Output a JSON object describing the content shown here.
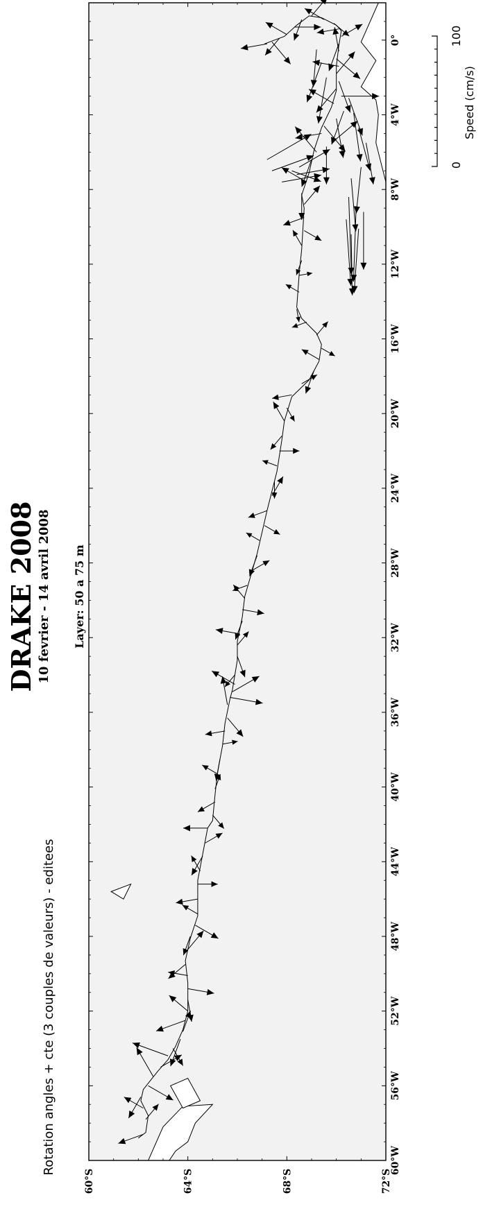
{
  "title": "DRAKE 2008",
  "subtitle": "10 fevrier - 14 avril 2008",
  "layer_label": "Layer:  50 a 75 m",
  "method_note": "Rotation angles + cte (3 couples de valeurs) - editees",
  "speed_scale": {
    "label": "Speed (cm/s)",
    "min_label": "0",
    "max_label": "100",
    "max_value": 100
  },
  "map": {
    "background_color": "#f2f2f2",
    "land_color": "#ffffff",
    "arrow_color": "#000000",
    "lat_range": [
      -72,
      -60
    ],
    "lon_range": [
      -60,
      2
    ],
    "lat_ticks": [
      "60°S",
      "64°S",
      "68°S",
      "72°S"
    ],
    "lon_ticks": [
      "60°W",
      "56°W",
      "52°W",
      "48°W",
      "44°W",
      "40°W",
      "36°W",
      "32°W",
      "28°W",
      "24°W",
      "20°W",
      "16°W",
      "12°W",
      "8°W",
      "4°W",
      "0°"
    ],
    "track": [
      [
        -58.8,
        -62.0
      ],
      [
        -58.5,
        -62.3
      ],
      [
        -57.6,
        -62.4
      ],
      [
        -56.8,
        -62.1
      ],
      [
        -56.2,
        -62.2
      ],
      [
        -55.7,
        -62.5
      ],
      [
        -55.2,
        -62.8
      ],
      [
        -54.6,
        -63.2
      ],
      [
        -53.9,
        -63.5
      ],
      [
        -53.0,
        -63.8
      ],
      [
        -52.0,
        -64.0
      ],
      [
        -50.5,
        -64.0
      ],
      [
        -49.3,
        -63.9
      ],
      [
        -48.1,
        -64.1
      ],
      [
        -46.9,
        -64.4
      ],
      [
        -45.0,
        -64.4
      ],
      [
        -43.6,
        -64.6
      ],
      [
        -42.2,
        -64.8
      ],
      [
        -41.8,
        -65.0
      ],
      [
        -40.4,
        -65.1
      ],
      [
        -39.2,
        -65.2
      ],
      [
        -37.8,
        -65.4
      ],
      [
        -36.6,
        -65.5
      ],
      [
        -35.3,
        -65.7
      ],
      [
        -34.8,
        -65.8
      ],
      [
        -33.2,
        -66.0
      ],
      [
        -32.2,
        -66.0
      ],
      [
        -30.9,
        -66.2
      ],
      [
        -29.8,
        -66.3
      ],
      [
        -27.5,
        -66.8
      ],
      [
        -25.2,
        -67.2
      ],
      [
        -23.1,
        -67.6
      ],
      [
        -21.4,
        -67.8
      ],
      [
        -20.4,
        -67.9
      ],
      [
        -19.1,
        -68.2
      ],
      [
        -18.2,
        -68.9
      ],
      [
        -17.2,
        -69.3
      ],
      [
        -16.3,
        -69.4
      ],
      [
        -15.7,
        -69.2
      ],
      [
        -14.9,
        -68.6
      ],
      [
        -14.3,
        -68.4
      ],
      [
        -12.5,
        -68.5
      ],
      [
        -11.2,
        -68.6
      ],
      [
        -9.0,
        -68.7
      ],
      [
        -8.3,
        -68.6
      ],
      [
        -7.1,
        -68.9
      ],
      [
        -5.9,
        -69.1
      ],
      [
        -4.7,
        -69.4
      ],
      [
        -3.6,
        -69.8
      ],
      [
        -2.7,
        -70.0
      ],
      [
        -1.4,
        -70.0
      ],
      [
        -0.3,
        -70.1
      ],
      [
        0.5,
        -70.2
      ],
      [
        0.8,
        -70.0
      ],
      [
        1.2,
        -69.4
      ],
      [
        1.3,
        -68.9
      ],
      [
        0.8,
        -68.4
      ],
      [
        0.2,
        -67.9
      ],
      [
        0.0,
        -67.5
      ],
      [
        -0.2,
        -67.1
      ]
    ],
    "arrows": [
      [
        -58.6,
        -62.2,
        24,
        250
      ],
      [
        -57.8,
        -62.3,
        18,
        40
      ],
      [
        -57.2,
        -62.2,
        20,
        300
      ],
      [
        -56.6,
        -62.1,
        22,
        210
      ],
      [
        -56.0,
        -62.4,
        26,
        120
      ],
      [
        -55.5,
        -62.6,
        30,
        330
      ],
      [
        -55.0,
        -62.9,
        22,
        60
      ],
      [
        -54.4,
        -63.2,
        34,
        290
      ],
      [
        -54.0,
        -63.4,
        18,
        150
      ],
      [
        -53.5,
        -63.7,
        26,
        200
      ],
      [
        -53.1,
        -63.8,
        20,
        20
      ],
      [
        -52.5,
        -63.9,
        28,
        250
      ],
      [
        -52.0,
        -64.0,
        22,
        310
      ],
      [
        -51.4,
        -64.0,
        20,
        170
      ],
      [
        -50.8,
        -64.0,
        24,
        100
      ],
      [
        -50.1,
        -64.0,
        18,
        280
      ],
      [
        -49.5,
        -63.9,
        20,
        230
      ],
      [
        -48.7,
        -64.0,
        22,
        40
      ],
      [
        -48.0,
        -64.1,
        18,
        200
      ],
      [
        -47.4,
        -64.3,
        24,
        120
      ],
      [
        -46.8,
        -64.4,
        16,
        300
      ],
      [
        -46.0,
        -64.4,
        20,
        260
      ],
      [
        -45.2,
        -64.4,
        18,
        90
      ],
      [
        -44.5,
        -64.5,
        16,
        330
      ],
      [
        -43.7,
        -64.6,
        20,
        210
      ],
      [
        -43.0,
        -64.7,
        18,
        60
      ],
      [
        -42.2,
        -64.8,
        22,
        270
      ],
      [
        -41.5,
        -65.0,
        16,
        140
      ],
      [
        -40.8,
        -65.1,
        18,
        240
      ],
      [
        -40.1,
        -65.1,
        14,
        20
      ],
      [
        -39.3,
        -65.2,
        16,
        300
      ],
      [
        -38.5,
        -65.3,
        20,
        190
      ],
      [
        -37.7,
        -65.4,
        14,
        80
      ],
      [
        -37.0,
        -65.5,
        18,
        260
      ],
      [
        -36.3,
        -65.6,
        22,
        140
      ],
      [
        -35.6,
        -65.6,
        26,
        350
      ],
      [
        -35.2,
        -65.7,
        30,
        100
      ],
      [
        -34.9,
        -65.8,
        28,
        60
      ],
      [
        -34.5,
        -65.9,
        24,
        300
      ],
      [
        -34.0,
        -65.9,
        14,
        220
      ],
      [
        -33.0,
        -66.0,
        20,
        160
      ],
      [
        -32.4,
        -66.0,
        16,
        40
      ],
      [
        -31.8,
        -66.1,
        22,
        280
      ],
      [
        -31.1,
        -66.2,
        18,
        200
      ],
      [
        -30.5,
        -66.2,
        20,
        100
      ],
      [
        -29.9,
        -66.3,
        16,
        320
      ],
      [
        -29.2,
        -66.4,
        14,
        250
      ],
      [
        -28.4,
        -66.6,
        18,
        60
      ],
      [
        -27.6,
        -66.8,
        20,
        200
      ],
      [
        -26.8,
        -66.9,
        14,
        300
      ],
      [
        -26.0,
        -67.1,
        16,
        120
      ],
      [
        -25.2,
        -67.2,
        18,
        250
      ],
      [
        -24.4,
        -67.4,
        20,
        30
      ],
      [
        -23.6,
        -67.5,
        16,
        180
      ],
      [
        -22.8,
        -67.6,
        14,
        290
      ],
      [
        -22.0,
        -67.7,
        18,
        90
      ],
      [
        -21.2,
        -67.8,
        16,
        220
      ],
      [
        -20.4,
        -67.9,
        20,
        330
      ],
      [
        -19.7,
        -68.0,
        14,
        150
      ],
      [
        -19.0,
        -68.2,
        18,
        260
      ],
      [
        -18.4,
        -68.6,
        16,
        60
      ],
      [
        -17.7,
        -69.1,
        22,
        200
      ],
      [
        -17.1,
        -69.3,
        18,
        300
      ],
      [
        -16.5,
        -69.4,
        14,
        120
      ],
      [
        -15.8,
        -69.2,
        16,
        40
      ],
      [
        -15.1,
        -68.8,
        14,
        250
      ],
      [
        -14.4,
        -68.4,
        12,
        170
      ],
      [
        -13.5,
        -68.5,
        14,
        300
      ],
      [
        -12.6,
        -68.5,
        12,
        80
      ],
      [
        -11.8,
        -68.6,
        14,
        200
      ],
      [
        -11.0,
        -68.6,
        16,
        330
      ],
      [
        -10.2,
        -68.7,
        18,
        120
      ],
      [
        -9.5,
        -68.7,
        20,
        250
      ],
      [
        -8.8,
        -68.7,
        22,
        40
      ],
      [
        -8.2,
        -68.6,
        24,
        180
      ],
      [
        -7.6,
        -68.8,
        26,
        300
      ],
      [
        -7.2,
        -68.4,
        30,
        80
      ],
      [
        -7.0,
        -68.2,
        28,
        110
      ],
      [
        -6.8,
        -68.5,
        32,
        60
      ],
      [
        -6.4,
        -69.0,
        26,
        200
      ],
      [
        -6.0,
        -69.2,
        30,
        320
      ],
      [
        -5.7,
        -69.6,
        34,
        180
      ],
      [
        -5.4,
        -69.9,
        28,
        50
      ],
      [
        -5.0,
        -69.4,
        24,
        260
      ],
      [
        -4.6,
        -69.5,
        30,
        140
      ],
      [
        -4.2,
        -70.0,
        36,
        170
      ],
      [
        -3.8,
        -70.3,
        32,
        200
      ],
      [
        -3.4,
        -69.9,
        26,
        300
      ],
      [
        -3.0,
        -70.2,
        34,
        90
      ],
      [
        -2.6,
        -70.0,
        28,
        220
      ],
      [
        -2.2,
        -70.1,
        30,
        160
      ],
      [
        -1.8,
        -70.0,
        26,
        40
      ],
      [
        -1.4,
        -70.1,
        24,
        280
      ],
      [
        -1.0,
        -70.0,
        28,
        130
      ],
      [
        -0.6,
        -70.1,
        22,
        350
      ],
      [
        -0.2,
        -70.1,
        26,
        200
      ],
      [
        0.2,
        -70.2,
        22,
        60
      ],
      [
        0.6,
        -70.1,
        20,
        260
      ],
      [
        0.9,
        -69.9,
        18,
        130
      ],
      [
        1.1,
        -69.5,
        20,
        300
      ],
      [
        1.3,
        -69.0,
        22,
        40
      ],
      [
        1.1,
        -68.6,
        20,
        200
      ],
      [
        0.7,
        -68.3,
        24,
        90
      ],
      [
        0.3,
        -68.0,
        22,
        300
      ],
      [
        0.1,
        -67.7,
        20,
        220
      ],
      [
        -0.1,
        -67.4,
        26,
        140
      ],
      [
        -0.2,
        -67.2,
        24,
        260
      ],
      [
        -8.4,
        -70.5,
        70,
        178
      ],
      [
        -8.9,
        -70.8,
        68,
        182
      ],
      [
        -9.6,
        -70.4,
        60,
        176
      ],
      [
        -10.1,
        -70.9,
        58,
        184
      ],
      [
        -9.2,
        -71.1,
        52,
        180
      ],
      [
        -10.4,
        -70.6,
        55,
        179
      ],
      [
        -7.4,
        -70.6,
        48,
        175
      ],
      [
        -6.8,
        -71.0,
        42,
        186
      ],
      [
        -5.5,
        -71.2,
        38,
        170
      ],
      [
        -4.7,
        -70.9,
        40,
        165
      ],
      [
        -3.9,
        -70.7,
        44,
        172
      ],
      [
        -3.1,
        -70.5,
        36,
        160
      ],
      [
        -6.4,
        -67.2,
        46,
        60
      ],
      [
        -7.0,
        -67.4,
        40,
        70
      ],
      [
        -7.6,
        -67.8,
        36,
        80
      ],
      [
        -2.0,
        -69.6,
        42,
        190
      ],
      [
        -1.2,
        -69.4,
        38,
        200
      ],
      [
        -0.5,
        -69.2,
        34,
        185
      ]
    ],
    "land": [
      [
        [
          -61.0,
          -61.9
        ],
        [
          -60.3,
          -63.1
        ],
        [
          -59.5,
          -63.5
        ],
        [
          -59.0,
          -64.0
        ],
        [
          -58.0,
          -64.3
        ],
        [
          -57.0,
          -65.0
        ],
        [
          -57.1,
          -63.8
        ],
        [
          -58.2,
          -63.0
        ],
        [
          -60.0,
          -62.4
        ],
        [
          -61.0,
          -62.2
        ]
      ],
      [
        [
          -56.0,
          -63.3
        ],
        [
          -55.6,
          -64.0
        ],
        [
          -56.8,
          -64.5
        ],
        [
          -57.2,
          -63.8
        ]
      ],
      [
        [
          -45.2,
          -61.7
        ],
        [
          -45.6,
          -60.9
        ],
        [
          -46.0,
          -61.4
        ]
      ],
      [
        [
          2.0,
          -71.7
        ],
        [
          -0.1,
          -71.0
        ],
        [
          -1.1,
          -71.6
        ],
        [
          -2.5,
          -71.0
        ],
        [
          -3.2,
          -71.6
        ],
        [
          -4.0,
          -71.7
        ],
        [
          -5.5,
          -71.6
        ],
        [
          -7.6,
          -72.0
        ],
        [
          -8.0,
          -72.5
        ],
        [
          -8.4,
          -72.8
        ],
        [
          -9.0,
          -72.6
        ],
        [
          -9.3,
          -72.0
        ],
        [
          -10.6,
          -72.7
        ],
        [
          -11.2,
          -72.7
        ],
        [
          -11.8,
          -72.5
        ],
        [
          -13.0,
          -72.5
        ],
        [
          -12.0,
          -73.0
        ],
        [
          2.0,
          -73.0
        ]
      ]
    ]
  }
}
